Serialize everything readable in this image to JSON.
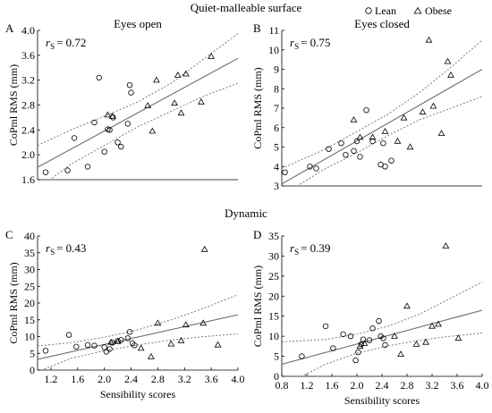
{
  "figure": {
    "section_titles": [
      "Quiet-malleable surface",
      "Dynamic"
    ],
    "legend": [
      {
        "label": "Lean",
        "marker": "circle"
      },
      {
        "label": "Obese",
        "marker": "triangle"
      }
    ],
    "colors": {
      "markers": "#000000",
      "fit_line": "#6e6e6e",
      "axes": "#000000"
    }
  },
  "chart_data": [
    {
      "type": "scatter",
      "panel_letter": "A",
      "title": "Eyes open",
      "rs_symbol": "r",
      "rs_sub": "S",
      "rs_value": "= 0.72",
      "xlabel": "",
      "ylabel": "CoPml RMS (mm)",
      "xlim": [
        1.0,
        4.0
      ],
      "ylim": [
        1.6,
        4.0
      ],
      "xticks": [],
      "yticks": [
        "1.6",
        "2.0",
        "2.4",
        "2.8",
        "3.2",
        "3.6",
        "4.0"
      ],
      "series": [
        {
          "name": "Lean",
          "marker": "circle",
          "x": [
            1.12,
            1.45,
            1.55,
            1.75,
            1.85,
            1.92,
            2.0,
            2.05,
            2.08,
            2.13,
            2.2,
            2.25,
            2.35,
            2.38,
            2.4
          ],
          "y": [
            1.72,
            1.75,
            2.27,
            1.81,
            2.52,
            3.24,
            2.05,
            2.41,
            2.4,
            2.6,
            2.2,
            2.13,
            2.5,
            3.12,
            3.0
          ]
        },
        {
          "name": "Obese",
          "marker": "triangle",
          "x": [
            2.05,
            2.12,
            2.65,
            2.72,
            2.78,
            3.05,
            3.1,
            3.15,
            3.22,
            3.45,
            3.6
          ],
          "y": [
            2.64,
            2.62,
            2.79,
            2.38,
            3.2,
            2.83,
            3.28,
            2.67,
            3.3,
            2.85,
            3.58
          ]
        }
      ],
      "fit": {
        "x": [
          1.0,
          4.0
        ],
        "y": [
          1.8,
          3.55
        ]
      },
      "ci_upper": {
        "x": [
          1.0,
          1.5,
          2.0,
          2.5,
          3.0,
          3.5,
          4.0
        ],
        "y": [
          2.15,
          2.4,
          2.62,
          2.85,
          3.15,
          3.55,
          3.95
        ]
      },
      "ci_lower": {
        "x": [
          1.0,
          1.5,
          2.0,
          2.5,
          3.0,
          3.5,
          4.0
        ],
        "y": [
          1.45,
          1.85,
          2.15,
          2.45,
          2.7,
          2.95,
          3.15
        ]
      }
    },
    {
      "type": "scatter",
      "panel_letter": "B",
      "title": "Eyes closed",
      "rs_symbol": "r",
      "rs_sub": "S",
      "rs_value": "= 0.75",
      "xlabel": "",
      "ylabel": "CoPml RMS (mm)",
      "xlim": [
        0.8,
        4.0
      ],
      "ylim": [
        3,
        11
      ],
      "xticks": [],
      "yticks": [
        "3",
        "4",
        "5",
        "6",
        "7",
        "8",
        "9",
        "10",
        "11"
      ],
      "series": [
        {
          "name": "Lean",
          "marker": "circle",
          "x": [
            0.85,
            1.25,
            1.35,
            1.55,
            1.75,
            1.82,
            1.95,
            2.0,
            2.05,
            2.15,
            2.25,
            2.38,
            2.42,
            2.45,
            2.55
          ],
          "y": [
            3.7,
            4.0,
            3.9,
            4.9,
            5.2,
            4.6,
            4.8,
            5.3,
            4.5,
            6.9,
            5.3,
            4.1,
            5.2,
            4.0,
            4.3
          ]
        },
        {
          "name": "Obese",
          "marker": "triangle",
          "x": [
            1.95,
            2.05,
            2.25,
            2.45,
            2.65,
            2.75,
            2.85,
            3.05,
            3.15,
            3.22,
            3.35,
            3.45,
            3.5
          ],
          "y": [
            6.4,
            5.5,
            5.5,
            5.8,
            5.3,
            6.5,
            5.0,
            6.8,
            10.5,
            7.1,
            5.7,
            9.4,
            8.7
          ]
        }
      ],
      "fit": {
        "x": [
          0.8,
          4.0
        ],
        "y": [
          3.1,
          9.0
        ]
      },
      "ci_upper": {
        "x": [
          0.8,
          1.5,
          2.0,
          2.5,
          3.0,
          3.5,
          4.0
        ],
        "y": [
          3.9,
          4.9,
          5.8,
          6.7,
          7.8,
          9.1,
          10.5
        ]
      },
      "ci_lower": {
        "x": [
          0.8,
          1.5,
          2.0,
          2.5,
          3.0,
          3.5,
          4.0
        ],
        "y": [
          2.5,
          3.9,
          4.7,
          5.6,
          6.4,
          7.0,
          7.6
        ]
      }
    },
    {
      "type": "scatter",
      "panel_letter": "C",
      "title": "",
      "rs_symbol": "r",
      "rs_sub": "S",
      "rs_value": "= 0.43",
      "xlabel": "Sensibility scores",
      "ylabel": "CoPml RMS (mm)",
      "xlim": [
        1.0,
        4.0
      ],
      "ylim": [
        0,
        40
      ],
      "xticks": [
        "1.2",
        "1.6",
        "2.0",
        "2.4",
        "2.8",
        "3.2",
        "3.6",
        "4.0"
      ],
      "yticks": [
        "0",
        "5",
        "10",
        "15",
        "20",
        "25",
        "30",
        "35",
        "40"
      ],
      "series": [
        {
          "name": "Lean",
          "marker": "circle",
          "x": [
            1.12,
            1.47,
            1.58,
            1.75,
            1.85,
            2.0,
            2.03,
            2.08,
            2.12,
            2.2,
            2.25,
            2.35,
            2.38,
            2.42,
            2.45
          ],
          "y": [
            5.8,
            10.5,
            7.0,
            7.5,
            7.3,
            6.8,
            5.5,
            6.3,
            8.2,
            8.7,
            9.0,
            9.5,
            11.4,
            8.0,
            7.4
          ]
        },
        {
          "name": "Obese",
          "marker": "triangle",
          "x": [
            2.1,
            2.2,
            2.7,
            2.8,
            3.0,
            3.15,
            3.22,
            3.48,
            3.5,
            3.7,
            2.55
          ],
          "y": [
            8.3,
            8.5,
            4.0,
            14.0,
            7.8,
            8.8,
            13.5,
            14.0,
            36.0,
            7.5,
            6.5
          ]
        }
      ],
      "fit": {
        "x": [
          1.0,
          4.0
        ],
        "y": [
          3.2,
          16.5
        ]
      },
      "ci_upper": {
        "x": [
          1.0,
          1.5,
          2.0,
          2.5,
          3.0,
          3.5,
          4.0
        ],
        "y": [
          7.2,
          8.2,
          9.8,
          12.0,
          15.0,
          18.5,
          22.5
        ]
      },
      "ci_lower": {
        "x": [
          1.0,
          1.5,
          2.0,
          2.5,
          3.0,
          3.5,
          4.0
        ],
        "y": [
          -0.5,
          3.5,
          5.8,
          7.5,
          9.0,
          10.0,
          10.8
        ]
      }
    },
    {
      "type": "scatter",
      "panel_letter": "D",
      "title": "",
      "rs_symbol": "r",
      "rs_sub": "S",
      "rs_value": "= 0.39",
      "xlabel": "Sensibility scores",
      "ylabel": "CoPml RMS (mm)",
      "xlim": [
        0.8,
        4.0
      ],
      "ylim": [
        0,
        35
      ],
      "xticks": [
        "0.8",
        "1.2",
        "1.6",
        "2.0",
        "2.4",
        "2.8",
        "3.2",
        "3.6",
        "4.0"
      ],
      "yticks": [
        "0",
        "5",
        "10",
        "15",
        "20",
        "25",
        "30",
        "35"
      ],
      "series": [
        {
          "name": "Lean",
          "marker": "circle",
          "x": [
            1.12,
            1.5,
            1.62,
            1.78,
            1.9,
            1.98,
            2.02,
            2.07,
            2.1,
            2.2,
            2.25,
            2.35,
            2.38,
            2.42,
            2.45
          ],
          "y": [
            5.0,
            12.5,
            7.0,
            10.5,
            10.0,
            4.0,
            6.0,
            8.0,
            9.2,
            9.0,
            12.0,
            13.8,
            10.0,
            9.5,
            7.8
          ]
        },
        {
          "name": "Obese",
          "marker": "triangle",
          "x": [
            2.05,
            2.12,
            2.6,
            2.7,
            2.8,
            2.95,
            3.1,
            3.2,
            3.3,
            3.42,
            3.62
          ],
          "y": [
            7.5,
            8.2,
            10.0,
            5.5,
            17.5,
            8.0,
            8.5,
            12.5,
            13.0,
            32.5,
            9.5
          ]
        }
      ],
      "fit": {
        "x": [
          0.8,
          4.0
        ],
        "y": [
          3.0,
          16.5
        ]
      },
      "ci_upper": {
        "x": [
          0.8,
          1.5,
          2.0,
          2.5,
          3.0,
          3.5,
          4.0
        ],
        "y": [
          8.6,
          9.2,
          10.5,
          12.5,
          15.5,
          19.5,
          23.5
        ]
      },
      "ci_lower": {
        "x": [
          0.8,
          1.5,
          2.0,
          2.5,
          3.0,
          3.5,
          4.0
        ],
        "y": [
          -2.5,
          3.0,
          5.8,
          7.6,
          9.0,
          10.0,
          10.8
        ]
      }
    }
  ]
}
